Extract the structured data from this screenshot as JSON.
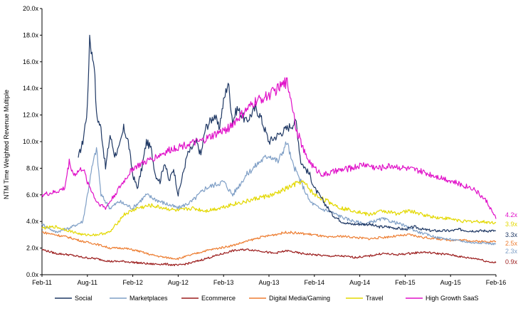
{
  "chart_data": {
    "type": "line",
    "ylabel": "NTM Time Weighted Revenue Multiple",
    "xlabel": "",
    "ylim": [
      0,
      20
    ],
    "y_ticks": [
      "0.0x",
      "2.0x",
      "4.0x",
      "6.0x",
      "8.0x",
      "10.0x",
      "12.0x",
      "14.0x",
      "16.0x",
      "18.0x",
      "20.0x"
    ],
    "x_ticks": [
      "Feb-11",
      "Aug-11",
      "Feb-12",
      "Aug-12",
      "Feb-13",
      "Aug-13",
      "Feb-14",
      "Aug-14",
      "Feb-15",
      "Aug-15",
      "Feb-16"
    ],
    "series": [
      {
        "name": "Social",
        "color": "#1f3864",
        "end_label": "3.3x",
        "anchors": [
          [
            0.3,
            null
          ],
          [
            0.8,
            8.8
          ],
          [
            0.9,
            10.0
          ],
          [
            1.0,
            12.5
          ],
          [
            1.05,
            18.0
          ],
          [
            1.1,
            16.5
          ],
          [
            1.15,
            16.0
          ],
          [
            1.2,
            12.0
          ],
          [
            1.3,
            11.0
          ],
          [
            1.4,
            8.0
          ],
          [
            1.5,
            10.5
          ],
          [
            1.6,
            9.0
          ],
          [
            1.7,
            9.5
          ],
          [
            1.8,
            11.0
          ],
          [
            1.9,
            10.0
          ],
          [
            2.0,
            7.5
          ],
          [
            2.1,
            6.5
          ],
          [
            2.2,
            8.0
          ],
          [
            2.3,
            10.0
          ],
          [
            2.4,
            9.5
          ],
          [
            2.5,
            7.5
          ],
          [
            2.6,
            7.0
          ],
          [
            2.7,
            8.5
          ],
          [
            2.8,
            7.0
          ],
          [
            2.9,
            8.0
          ],
          [
            3.0,
            6.0
          ],
          [
            3.1,
            7.5
          ],
          [
            3.2,
            9.0
          ],
          [
            3.3,
            9.5
          ],
          [
            3.4,
            10.0
          ],
          [
            3.5,
            9.0
          ],
          [
            3.6,
            11.0
          ],
          [
            3.7,
            11.5
          ],
          [
            3.8,
            12.0
          ],
          [
            3.9,
            11.0
          ],
          [
            4.0,
            13.0
          ],
          [
            4.1,
            14.5
          ],
          [
            4.15,
            13.0
          ],
          [
            4.2,
            11.5
          ],
          [
            4.3,
            12.5
          ],
          [
            4.4,
            12.0
          ],
          [
            4.5,
            11.5
          ],
          [
            4.6,
            12.0
          ],
          [
            4.7,
            12.5
          ],
          [
            4.8,
            12.0
          ],
          [
            4.9,
            11.0
          ],
          [
            5.0,
            10.0
          ],
          [
            5.2,
            10.5
          ],
          [
            5.4,
            11.0
          ],
          [
            5.6,
            11.5
          ],
          [
            5.7,
            8.5
          ],
          [
            5.8,
            8.0
          ],
          [
            5.9,
            7.5
          ],
          [
            6.0,
            6.5
          ],
          [
            6.1,
            6.0
          ],
          [
            6.2,
            5.5
          ],
          [
            6.4,
            4.5
          ],
          [
            6.6,
            4.0
          ],
          [
            6.8,
            3.8
          ],
          [
            7.0,
            3.8
          ],
          [
            7.2,
            3.8
          ],
          [
            7.4,
            3.6
          ],
          [
            7.6,
            3.6
          ],
          [
            7.8,
            3.5
          ],
          [
            8.0,
            3.4
          ],
          [
            8.2,
            3.6
          ],
          [
            8.4,
            3.4
          ],
          [
            8.6,
            3.3
          ],
          [
            8.8,
            3.3
          ],
          [
            9.0,
            3.3
          ],
          [
            9.2,
            3.4
          ],
          [
            9.4,
            3.3
          ],
          [
            9.6,
            3.3
          ],
          [
            9.8,
            3.3
          ],
          [
            10.0,
            3.3
          ]
        ]
      },
      {
        "name": "Marketplaces",
        "color": "#7f9fc6",
        "end_label": "2.3x",
        "anchors": [
          [
            0.0,
            3.8
          ],
          [
            0.3,
            3.2
          ],
          [
            0.6,
            3.5
          ],
          [
            0.9,
            4.0
          ],
          [
            1.1,
            8.0
          ],
          [
            1.2,
            9.5
          ],
          [
            1.3,
            6.0
          ],
          [
            1.5,
            5.0
          ],
          [
            1.7,
            5.5
          ],
          [
            2.0,
            5.0
          ],
          [
            2.3,
            6.0
          ],
          [
            2.6,
            5.5
          ],
          [
            3.0,
            5.0
          ],
          [
            3.3,
            5.5
          ],
          [
            3.6,
            6.5
          ],
          [
            4.0,
            7.0
          ],
          [
            4.2,
            6.0
          ],
          [
            4.5,
            7.5
          ],
          [
            4.8,
            8.5
          ],
          [
            5.0,
            9.0
          ],
          [
            5.2,
            8.5
          ],
          [
            5.4,
            10.0
          ],
          [
            5.5,
            8.5
          ],
          [
            5.7,
            7.0
          ],
          [
            5.9,
            5.5
          ],
          [
            6.1,
            5.0
          ],
          [
            6.3,
            4.8
          ],
          [
            6.5,
            4.5
          ],
          [
            6.7,
            4.2
          ],
          [
            6.9,
            4.0
          ],
          [
            7.1,
            3.8
          ],
          [
            7.3,
            4.0
          ],
          [
            7.5,
            4.2
          ],
          [
            7.7,
            4.0
          ],
          [
            7.9,
            3.8
          ],
          [
            8.1,
            3.5
          ],
          [
            8.3,
            3.2
          ],
          [
            8.5,
            3.0
          ],
          [
            8.7,
            2.8
          ],
          [
            8.9,
            2.7
          ],
          [
            9.1,
            2.6
          ],
          [
            9.3,
            2.5
          ],
          [
            9.5,
            2.4
          ],
          [
            9.7,
            2.4
          ],
          [
            10.0,
            2.3
          ]
        ]
      },
      {
        "name": "Ecommerce",
        "color": "#9b1c1c",
        "end_label": "0.9x",
        "anchors": [
          [
            0.0,
            1.9
          ],
          [
            0.3,
            1.6
          ],
          [
            0.6,
            1.5
          ],
          [
            0.9,
            1.3
          ],
          [
            1.2,
            1.2
          ],
          [
            1.5,
            1.0
          ],
          [
            1.8,
            1.0
          ],
          [
            2.1,
            0.9
          ],
          [
            2.4,
            0.8
          ],
          [
            2.7,
            0.8
          ],
          [
            3.0,
            0.7
          ],
          [
            3.3,
            0.9
          ],
          [
            3.6,
            1.2
          ],
          [
            3.9,
            1.5
          ],
          [
            4.2,
            1.8
          ],
          [
            4.5,
            1.9
          ],
          [
            4.8,
            1.8
          ],
          [
            5.1,
            1.6
          ],
          [
            5.4,
            1.8
          ],
          [
            5.7,
            1.6
          ],
          [
            6.0,
            1.5
          ],
          [
            6.3,
            1.4
          ],
          [
            6.6,
            1.4
          ],
          [
            6.9,
            1.3
          ],
          [
            7.2,
            1.4
          ],
          [
            7.5,
            1.6
          ],
          [
            7.8,
            1.5
          ],
          [
            8.1,
            1.6
          ],
          [
            8.4,
            1.7
          ],
          [
            8.7,
            1.6
          ],
          [
            9.0,
            1.5
          ],
          [
            9.3,
            1.3
          ],
          [
            9.6,
            1.2
          ],
          [
            9.8,
            1.0
          ],
          [
            10.0,
            0.9
          ]
        ]
      },
      {
        "name": "Digital Media/Gaming",
        "color": "#ed7d31",
        "end_label": "2.5x",
        "anchors": [
          [
            0.0,
            3.2
          ],
          [
            0.3,
            3.0
          ],
          [
            0.6,
            2.8
          ],
          [
            0.9,
            2.5
          ],
          [
            1.2,
            2.3
          ],
          [
            1.5,
            2.0
          ],
          [
            1.8,
            2.0
          ],
          [
            2.1,
            1.8
          ],
          [
            2.4,
            1.5
          ],
          [
            2.7,
            1.3
          ],
          [
            3.0,
            1.2
          ],
          [
            3.3,
            1.5
          ],
          [
            3.6,
            1.8
          ],
          [
            3.9,
            2.0
          ],
          [
            4.2,
            2.2
          ],
          [
            4.5,
            2.5
          ],
          [
            4.8,
            2.8
          ],
          [
            5.1,
            3.0
          ],
          [
            5.4,
            3.2
          ],
          [
            5.7,
            3.1
          ],
          [
            6.0,
            3.0
          ],
          [
            6.3,
            2.8
          ],
          [
            6.6,
            2.9
          ],
          [
            6.9,
            2.8
          ],
          [
            7.2,
            2.7
          ],
          [
            7.5,
            2.8
          ],
          [
            7.8,
            2.9
          ],
          [
            8.1,
            3.0
          ],
          [
            8.4,
            2.8
          ],
          [
            8.7,
            2.7
          ],
          [
            9.0,
            2.6
          ],
          [
            9.3,
            2.6
          ],
          [
            9.6,
            2.5
          ],
          [
            10.0,
            2.5
          ]
        ]
      },
      {
        "name": "Travel",
        "color": "#e3d800",
        "end_label": "3.9x",
        "anchors": [
          [
            0.0,
            3.5
          ],
          [
            0.3,
            3.6
          ],
          [
            0.6,
            3.3
          ],
          [
            0.9,
            3.0
          ],
          [
            1.2,
            3.0
          ],
          [
            1.5,
            3.2
          ],
          [
            1.8,
            4.5
          ],
          [
            2.1,
            5.0
          ],
          [
            2.4,
            5.2
          ],
          [
            2.7,
            5.0
          ],
          [
            3.0,
            4.8
          ],
          [
            3.3,
            5.0
          ],
          [
            3.6,
            4.8
          ],
          [
            3.9,
            5.0
          ],
          [
            4.2,
            5.3
          ],
          [
            4.5,
            5.5
          ],
          [
            4.8,
            5.8
          ],
          [
            5.1,
            6.0
          ],
          [
            5.4,
            6.5
          ],
          [
            5.7,
            7.0
          ],
          [
            5.8,
            6.8
          ],
          [
            6.0,
            6.0
          ],
          [
            6.3,
            5.5
          ],
          [
            6.6,
            5.0
          ],
          [
            6.9,
            4.8
          ],
          [
            7.2,
            4.5
          ],
          [
            7.5,
            4.8
          ],
          [
            7.8,
            4.6
          ],
          [
            8.1,
            4.8
          ],
          [
            8.4,
            4.5
          ],
          [
            8.7,
            4.3
          ],
          [
            9.0,
            4.2
          ],
          [
            9.3,
            4.0
          ],
          [
            9.6,
            4.0
          ],
          [
            10.0,
            3.9
          ]
        ]
      },
      {
        "name": "High Growth SaaS",
        "color": "#e010c8",
        "end_label": "4.2x",
        "anchors": [
          [
            0.0,
            6.0
          ],
          [
            0.3,
            6.2
          ],
          [
            0.5,
            6.5
          ],
          [
            0.6,
            8.5
          ],
          [
            0.7,
            7.5
          ],
          [
            0.9,
            8.0
          ],
          [
            1.0,
            7.0
          ],
          [
            1.2,
            5.5
          ],
          [
            1.4,
            5.0
          ],
          [
            1.6,
            6.0
          ],
          [
            1.8,
            7.0
          ],
          [
            2.0,
            8.0
          ],
          [
            2.3,
            8.5
          ],
          [
            2.6,
            9.0
          ],
          [
            2.9,
            9.5
          ],
          [
            3.2,
            9.8
          ],
          [
            3.5,
            10.0
          ],
          [
            3.8,
            10.5
          ],
          [
            4.1,
            11.0
          ],
          [
            4.4,
            12.0
          ],
          [
            4.7,
            13.0
          ],
          [
            5.0,
            13.5
          ],
          [
            5.2,
            14.0
          ],
          [
            5.4,
            14.5
          ],
          [
            5.5,
            13.0
          ],
          [
            5.6,
            11.0
          ],
          [
            5.8,
            9.0
          ],
          [
            6.0,
            8.0
          ],
          [
            6.2,
            7.5
          ],
          [
            6.5,
            7.8
          ],
          [
            6.8,
            8.0
          ],
          [
            7.1,
            8.3
          ],
          [
            7.4,
            8.0
          ],
          [
            7.7,
            8.2
          ],
          [
            8.0,
            8.0
          ],
          [
            8.3,
            7.8
          ],
          [
            8.6,
            7.5
          ],
          [
            8.9,
            7.2
          ],
          [
            9.2,
            6.8
          ],
          [
            9.5,
            6.5
          ],
          [
            9.8,
            5.5
          ],
          [
            10.0,
            4.2
          ]
        ]
      }
    ]
  }
}
